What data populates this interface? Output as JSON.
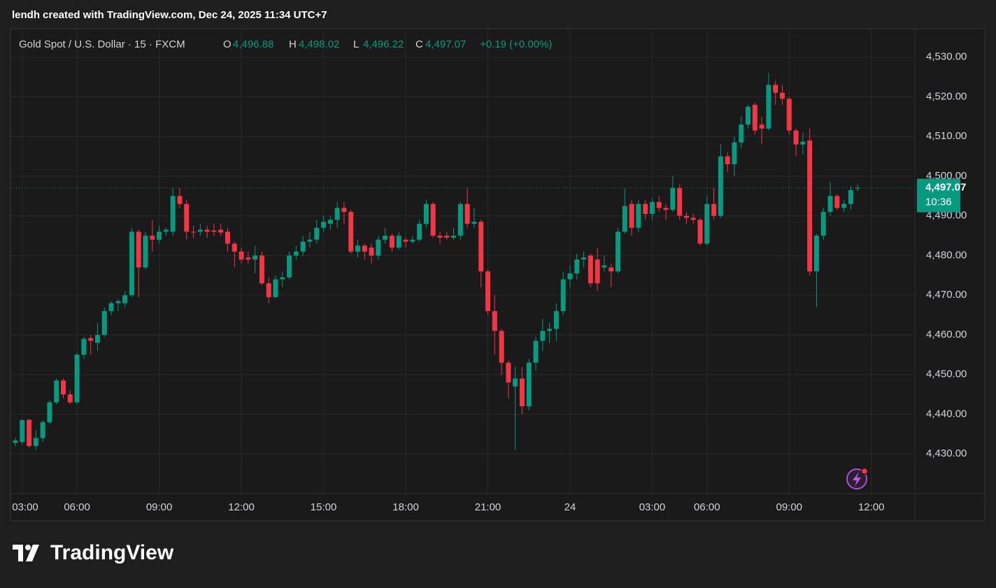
{
  "credit": "lendh created with TradingView.com, Dec 24, 2025 11:34 UTC+7",
  "brand": "TradingView",
  "chart_data": {
    "type": "candlestick",
    "title": "Gold Spot / U.S. Dollar · 15 · FXCM",
    "readout": [
      {
        "key": "O",
        "value": "4,496.88"
      },
      {
        "key": "H",
        "value": "4,498.02"
      },
      {
        "key": "L",
        "value": "4,496.22"
      },
      {
        "key": "C",
        "value": "4,497.07"
      }
    ],
    "change": "+0.19 (+0.00%)",
    "up_color": "#089981",
    "down_color": "#f23645",
    "grid": true,
    "categories": [
      null,
      "03:00",
      null,
      null,
      null,
      null,
      null,
      null,
      null,
      "06:00",
      null,
      null,
      null,
      null,
      null,
      null,
      null,
      null,
      null,
      null,
      null,
      "09:00",
      null,
      null,
      null,
      null,
      null,
      null,
      null,
      null,
      null,
      null,
      null,
      "12:00",
      null,
      null,
      null,
      null,
      null,
      null,
      null,
      null,
      null,
      null,
      null,
      "15:00",
      null,
      null,
      null,
      null,
      null,
      null,
      null,
      null,
      null,
      null,
      null,
      "18:00",
      null,
      null,
      null,
      null,
      null,
      null,
      null,
      null,
      null,
      null,
      null,
      "21:00",
      null,
      null,
      null,
      null,
      null,
      null,
      null,
      null,
      null,
      null,
      null,
      "24",
      null,
      null,
      null,
      null,
      null,
      null,
      null,
      null,
      null,
      null,
      null,
      "03:00",
      null,
      null,
      null,
      null,
      null,
      null,
      null,
      "06:00",
      null,
      null,
      null,
      null,
      null,
      null,
      null,
      null,
      null,
      null,
      null,
      "09:00",
      null,
      null,
      null,
      null,
      null,
      null,
      null,
      null,
      null,
      null,
      null,
      "12:00"
    ],
    "open": [
      4432.8,
      4433,
      4438.6,
      4432,
      4434,
      4438,
      4443,
      4448.5,
      4445,
      4443,
      4455,
      4459.2,
      4458,
      4460,
      4466,
      4468,
      4468,
      4470,
      4486,
      4477,
      4485,
      4484,
      4486,
      4486,
      4495,
      4493,
      4486,
      4486,
      4486.5,
      4486.3,
      4486.5,
      4486,
      4483,
      4481,
      4479.5,
      4479,
      4480,
      4473,
      4469.5,
      4474,
      4474.5,
      4480,
      4481,
      4483.5,
      4484,
      4487,
      4488,
      4489,
      4492,
      4491,
      4481,
      4482.5,
      4482,
      4480,
      4484,
      4485,
      4482,
      4484,
      4483.5,
      4484,
      4488,
      4493,
      4485,
      4485,
      4484.5,
      4485,
      4493,
      4488,
      4488.5,
      4476,
      4466,
      4461,
      4453,
      4447,
      4449,
      4442,
      4453,
      4458.5,
      4461,
      4461.5,
      4466,
      4474,
      4475.5,
      4479,
      4480,
      4479,
      4477,
      4477,
      4476,
      4486,
      4493,
      4487,
      4493,
      4490.5,
      4493.5,
      4492,
      4491.5,
      4497,
      4490,
      4489.5,
      4489,
      4483,
      4493,
      4490,
      4505,
      4503,
      4508.5,
      4513,
      4518,
      4513,
      4512,
      4523,
      4521,
      4519.5,
      4511.5,
      4508,
      4509,
      4476,
      4485,
      4491,
      4495,
      4492,
      4493,
      4496.88,
      null,
      null
    ],
    "high": [
      4434,
      4438.8,
      4438.8,
      4436,
      4438.5,
      4443.5,
      4449,
      4449,
      4446,
      4455.5,
      4459.5,
      4460,
      4463,
      4467,
      4468.5,
      4469,
      4471,
      4487,
      4486.5,
      4486,
      4489,
      4487.5,
      4487,
      4497,
      4497,
      4494,
      4487.5,
      4488,
      4487.5,
      4488,
      4488,
      4487,
      4483.5,
      4482,
      4481,
      4482.5,
      4481,
      4474.5,
      4475,
      4476,
      4481,
      4482.5,
      4485,
      4486,
      4489,
      4490,
      4490,
      4493.5,
      4493.5,
      4491.5,
      4484,
      4483,
      4483,
      4485,
      4487,
      4485.5,
      4486,
      4484.5,
      4485,
      4489,
      4494,
      4493.5,
      4486,
      4486,
      4487,
      4493.5,
      4497,
      4492,
      4489,
      4476.5,
      4470,
      4461.5,
      4453.5,
      4452,
      4452,
      4454,
      4459.5,
      4464,
      4463,
      4468,
      4476,
      4477.5,
      4480.5,
      4481,
      4480.5,
      4482,
      4480,
      4478,
      4487,
      4497,
      4494,
      4494,
      4494,
      4494.5,
      4495,
      4493,
      4500,
      4498,
      4491,
      4490.5,
      4489.5,
      4495,
      4497,
      4508,
      4506,
      4510,
      4515,
      4518,
      4518.5,
      4515,
      4526,
      4524,
      4523,
      4520,
      4512,
      4511,
      4512,
      4485.5,
      4492,
      4498.5,
      4495.5,
      4494,
      4497.5,
      4498.02,
      null,
      null
    ],
    "low": [
      4432,
      4432.5,
      4431.5,
      4431,
      4433,
      4437.5,
      4442.5,
      4444,
      4442.5,
      4442.5,
      4454,
      4455,
      4456,
      4459.5,
      4465,
      4466,
      4467,
      4469.5,
      4469.5,
      4476.5,
      4481,
      4483,
      4485,
      4485,
      4492,
      4484,
      4484.5,
      4485,
      4484.5,
      4485,
      4485,
      4481,
      4477,
      4478,
      4478,
      4475.5,
      4472.5,
      4468,
      4469.5,
      4472,
      4474,
      4479,
      4480,
      4482,
      4483,
      4486,
      4486.5,
      4487,
      4488,
      4480.5,
      4479.5,
      4479,
      4478,
      4479,
      4483,
      4481,
      4481.5,
      4482,
      4483,
      4483.5,
      4487,
      4484.5,
      4483,
      4484,
      4484,
      4484,
      4487,
      4487,
      4472,
      4465,
      4455,
      4450,
      4444,
      4431,
      4440,
      4441,
      4451,
      4456,
      4458,
      4458.5,
      4465,
      4472,
      4474,
      4477,
      4472,
      4471,
      4476,
      4472,
      4475.5,
      4485.5,
      4485,
      4486,
      4489,
      4489,
      4491,
      4489,
      4491,
      4489,
      4488,
      4488,
      4482.5,
      4482.5,
      4489,
      4489.5,
      4501,
      4500,
      4507,
      4512,
      4510.5,
      4508,
      4511.5,
      4518,
      4518,
      4510.5,
      4505,
      4505.5,
      4475,
      4467,
      4484,
      4490,
      4491.5,
      4491,
      4491.5,
      4496.22,
      null,
      null
    ],
    "close": [
      4433.4,
      4438.5,
      4432,
      4434,
      4438,
      4443,
      4448.5,
      4445,
      4443,
      4455,
      4459,
      4458.5,
      4460,
      4466,
      4468,
      4468.5,
      4470,
      4486,
      4477,
      4485,
      4484,
      4486,
      4486.5,
      4495,
      4493,
      4486,
      4485.8,
      4486.5,
      4486,
      4486,
      4485.8,
      4483,
      4481,
      4479,
      4479,
      4480,
      4473,
      4469.5,
      4474,
      4474.5,
      4480,
      4481,
      4483.5,
      4484,
      4487,
      4488.5,
      4489,
      4492,
      4491,
      4481,
      4482.5,
      4481,
      4480,
      4484,
      4485,
      4482,
      4485,
      4483.5,
      4484,
      4488,
      4493,
      4485,
      4484.5,
      4484.5,
      4485,
      4493,
      4488,
      4488.5,
      4476,
      4466,
      4461,
      4453,
      4448,
      4449,
      4442,
      4453,
      4458.5,
      4461,
      4461.5,
      4466,
      4474,
      4475.5,
      4479,
      4479.5,
      4473,
      4473,
      4477.5,
      4476,
      4486,
      4492.5,
      4487,
      4493,
      4490.5,
      4493.5,
      4492,
      4491.5,
      4497,
      4490,
      4489.5,
      4489,
      4483,
      4493,
      4490,
      4505,
      4503,
      4508.5,
      4513,
      4517.5,
      4511.5,
      4512,
      4523,
      4521,
      4519.5,
      4511.5,
      4508,
      4508.7,
      4476,
      4485,
      4491,
      4495,
      4492,
      4493,
      4496.5,
      4497.07,
      null,
      null
    ],
    "ylim": [
      4420,
      4537
    ],
    "yticks": [
      {
        "value": 4430,
        "label": "4,430.00"
      },
      {
        "value": 4440,
        "label": "4,440.00"
      },
      {
        "value": 4450,
        "label": "4,450.00"
      },
      {
        "value": 4460,
        "label": "4,460.00"
      },
      {
        "value": 4470,
        "label": "4,470.00"
      },
      {
        "value": 4480,
        "label": "4,480.00"
      },
      {
        "value": 4490,
        "label": "4,490.00"
      },
      {
        "value": 4500,
        "label": "4,500.00"
      },
      {
        "value": 4510,
        "label": "4,510.00"
      },
      {
        "value": 4520,
        "label": "4,520.00"
      },
      {
        "value": 4530,
        "label": "4,530.00"
      }
    ],
    "last_price": {
      "value": 4497.07,
      "label": "4,497.07"
    },
    "countdown": "10:36"
  }
}
